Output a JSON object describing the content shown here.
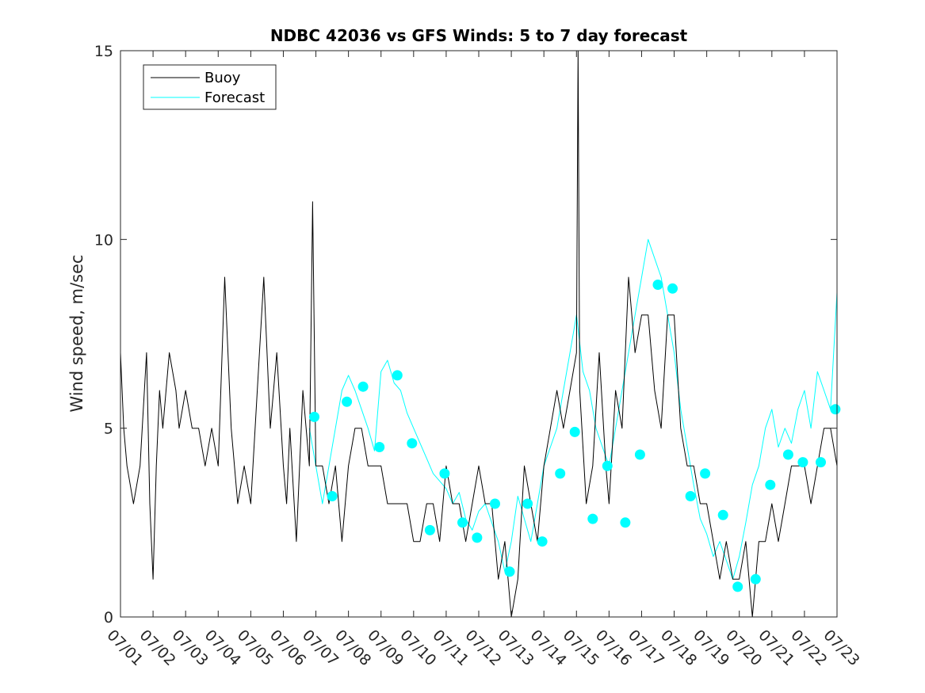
{
  "chart_data": {
    "type": "line",
    "title": "NDBC 42036 vs GFS Winds: 5 to 7 day forecast",
    "xlabel": "",
    "ylabel": "Wind speed, m/sec",
    "xlim": [
      1,
      23
    ],
    "ylim": [
      0,
      15
    ],
    "yticks": [
      0,
      5,
      10,
      15
    ],
    "xtick_labels": [
      "07/01",
      "07/02",
      "07/03",
      "07/04",
      "07/05",
      "07/06",
      "07/07",
      "07/08",
      "07/09",
      "07/10",
      "07/11",
      "07/12",
      "07/13",
      "07/14",
      "07/15",
      "07/16",
      "07/17",
      "07/18",
      "07/19",
      "07/20",
      "07/21",
      "07/22",
      "07/23"
    ],
    "grid": false,
    "legend": {
      "position": "top-left",
      "entries": [
        "Buoy",
        "Forecast"
      ]
    },
    "colors": {
      "buoy": "#000000",
      "forecast": "#00ffff"
    },
    "series": [
      {
        "name": "Buoy",
        "x": [
          1.0,
          1.1,
          1.2,
          1.4,
          1.6,
          1.8,
          1.9,
          2.0,
          2.1,
          2.2,
          2.3,
          2.5,
          2.7,
          2.8,
          3.0,
          3.2,
          3.4,
          3.6,
          3.8,
          4.0,
          4.2,
          4.4,
          4.6,
          4.8,
          5.0,
          5.2,
          5.4,
          5.6,
          5.8,
          6.0,
          6.1,
          6.2,
          6.4,
          6.6,
          6.8,
          6.9,
          7.0,
          7.2,
          7.4,
          7.6,
          7.8,
          8.0,
          8.2,
          8.4,
          8.6,
          8.8,
          9.0,
          9.2,
          9.4,
          9.6,
          9.8,
          10.0,
          10.2,
          10.4,
          10.6,
          10.8,
          11.0,
          11.2,
          11.4,
          11.6,
          11.8,
          12.0,
          12.2,
          12.4,
          12.6,
          12.8,
          13.0,
          13.2,
          13.4,
          13.6,
          13.8,
          14.0,
          14.2,
          14.4,
          14.6,
          14.8,
          15.0,
          15.05,
          15.1,
          15.3,
          15.5,
          15.7,
          15.9,
          16.0,
          16.2,
          16.4,
          16.6,
          16.8,
          17.0,
          17.2,
          17.4,
          17.6,
          17.8,
          18.0,
          18.2,
          18.4,
          18.6,
          18.8,
          19.0,
          19.2,
          19.4,
          19.6,
          19.8,
          20.0,
          20.2,
          20.4,
          20.6,
          20.8,
          21.0,
          21.2,
          21.4,
          21.6,
          21.8,
          22.0,
          22.2,
          22.4,
          22.6,
          22.8,
          23.0
        ],
        "y": [
          7,
          5,
          4,
          3,
          4,
          7,
          3,
          1,
          4,
          6,
          5,
          7,
          6,
          5,
          6,
          5,
          5,
          4,
          5,
          4,
          9,
          5,
          3,
          4,
          3,
          6,
          9,
          5,
          7,
          4,
          3,
          5,
          2,
          6,
          4,
          11,
          4,
          4,
          3,
          4,
          2,
          4,
          5,
          5,
          4,
          4,
          4,
          3,
          3,
          3,
          3,
          2,
          2,
          3,
          3,
          2,
          4,
          3,
          3,
          2,
          3,
          4,
          3,
          3,
          1,
          2,
          0,
          1,
          4,
          3,
          2,
          4,
          5,
          6,
          5,
          6,
          7,
          15,
          6,
          3,
          4,
          7,
          4,
          3,
          6,
          5,
          9,
          7,
          8,
          8,
          6,
          5,
          8,
          8,
          5,
          4,
          4,
          3,
          3,
          2,
          1,
          2,
          1,
          1,
          2,
          0,
          2,
          2,
          3,
          2,
          3,
          4,
          4,
          4,
          3,
          4,
          5,
          5,
          4
        ]
      },
      {
        "name": "Forecast",
        "x": [
          6.8,
          7.0,
          7.2,
          7.4,
          7.6,
          7.8,
          8.0,
          8.2,
          8.4,
          8.6,
          8.8,
          9.0,
          9.2,
          9.4,
          9.6,
          9.8,
          10.0,
          10.2,
          10.4,
          10.6,
          10.8,
          11.0,
          11.2,
          11.4,
          11.6,
          11.8,
          12.0,
          12.2,
          12.4,
          12.6,
          12.8,
          13.0,
          13.2,
          13.4,
          13.6,
          13.8,
          14.0,
          14.2,
          14.4,
          14.6,
          14.8,
          15.0,
          15.2,
          15.4,
          15.6,
          15.8,
          16.0,
          16.2,
          16.4,
          16.6,
          16.8,
          17.0,
          17.2,
          17.4,
          17.6,
          17.8,
          18.0,
          18.2,
          18.4,
          18.6,
          18.8,
          19.0,
          19.2,
          19.4,
          19.6,
          19.8,
          20.0,
          20.2,
          20.4,
          20.6,
          20.8,
          21.0,
          21.2,
          21.4,
          21.6,
          21.8,
          22.0,
          22.2,
          22.4,
          22.6,
          22.8,
          23.0
        ],
        "y": [
          5,
          4,
          3,
          4,
          5,
          6,
          6.4,
          6,
          5.5,
          5,
          4.4,
          6.5,
          6.8,
          6.2,
          6,
          5.4,
          5,
          4.6,
          4.2,
          3.8,
          3.6,
          3.4,
          3,
          3.3,
          2.6,
          2.3,
          2.8,
          3,
          2.5,
          2,
          1.2,
          2,
          3.2,
          2.6,
          2,
          3,
          4,
          4.5,
          5,
          6,
          7,
          8,
          6.5,
          6,
          5,
          4.5,
          4,
          5,
          6,
          7,
          8,
          9,
          10,
          9.5,
          9,
          8,
          7,
          5.5,
          4.5,
          3.5,
          2.6,
          2.2,
          1.6,
          2,
          1.5,
          1,
          1.6,
          2.5,
          3.5,
          4,
          5,
          5.5,
          4.5,
          5,
          4.6,
          5.5,
          6,
          5,
          6.5,
          6,
          5.5,
          8.6
        ]
      }
    ],
    "forecast_points": {
      "name": "Forecast",
      "x": [
        6.95,
        7.5,
        7.95,
        8.45,
        8.95,
        9.5,
        9.95,
        10.5,
        10.95,
        11.5,
        11.95,
        12.5,
        12.95,
        13.5,
        13.95,
        14.5,
        14.95,
        15.5,
        15.95,
        16.5,
        16.95,
        17.5,
        17.95,
        18.5,
        18.95,
        19.5,
        19.95,
        20.5,
        20.95,
        21.5,
        21.95,
        22.5,
        22.95
      ],
      "y": [
        5.3,
        3.2,
        5.7,
        6.1,
        4.5,
        6.4,
        4.6,
        2.3,
        3.8,
        2.5,
        2.1,
        3,
        1.2,
        3,
        2,
        3.8,
        4.9,
        2.6,
        4,
        2.5,
        4.3,
        8.8,
        8.7,
        3.2,
        3.8,
        2.7,
        0.8,
        1,
        3.5,
        4.3,
        4.1,
        4.1,
        5.5
      ]
    }
  }
}
